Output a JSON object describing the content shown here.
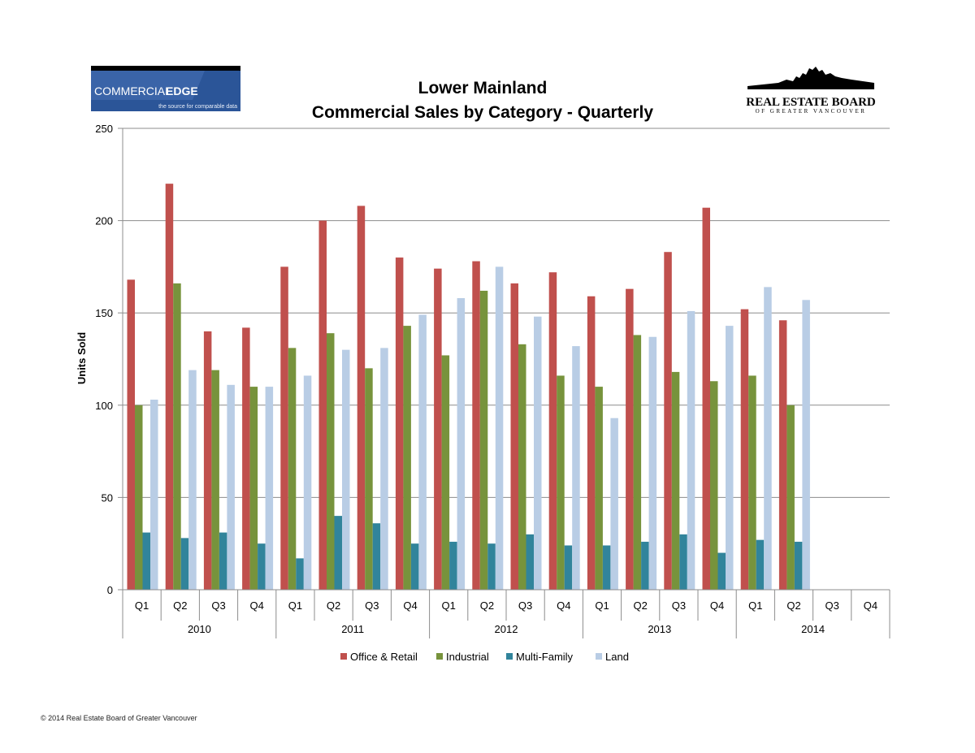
{
  "logos": {
    "left": {
      "brand": "COMMERCIAL",
      "brand_bold": "EDGE",
      "tagline": "the source for comparable data",
      "bg_color": "#2b5598"
    },
    "right": {
      "name": "REAL ESTATE BOARD",
      "sub": "OF GREATER VANCOUVER"
    }
  },
  "footer": {
    "text": "© 2014 Real Estate Board of Greater Vancouver"
  },
  "chart_data": {
    "type": "bar",
    "title": "Lower Mainland",
    "subtitle": "Commercial Sales by Category - Quarterly",
    "ylabel": "Units Sold",
    "xlabel": "",
    "ylim": [
      0,
      250
    ],
    "yticks": [
      0,
      50,
      100,
      150,
      200,
      250
    ],
    "grid": true,
    "legend_position": "bottom",
    "years": [
      "2010",
      "2011",
      "2012",
      "2013",
      "2014"
    ],
    "quarters": [
      "Q1",
      "Q2",
      "Q3",
      "Q4"
    ],
    "categories": [
      "2010 Q1",
      "2010 Q2",
      "2010 Q3",
      "2010 Q4",
      "2011 Q1",
      "2011 Q2",
      "2011 Q3",
      "2011 Q4",
      "2012 Q1",
      "2012 Q2",
      "2012 Q3",
      "2012 Q4",
      "2013 Q1",
      "2013 Q2",
      "2013 Q3",
      "2013 Q4",
      "2014 Q1",
      "2014 Q2",
      "2014 Q3",
      "2014 Q4"
    ],
    "series": [
      {
        "name": "Office & Retail",
        "color": "#c0504d",
        "values": [
          168,
          220,
          140,
          142,
          175,
          200,
          208,
          180,
          174,
          178,
          166,
          172,
          159,
          163,
          183,
          207,
          152,
          146,
          null,
          null
        ]
      },
      {
        "name": "Industrial",
        "color": "#77933c",
        "values": [
          100,
          166,
          119,
          110,
          131,
          139,
          120,
          143,
          127,
          162,
          133,
          116,
          110,
          138,
          118,
          113,
          116,
          100,
          null,
          null
        ]
      },
      {
        "name": "Multi-Family",
        "color": "#31849b",
        "values": [
          31,
          28,
          31,
          25,
          17,
          40,
          36,
          25,
          26,
          25,
          30,
          24,
          24,
          26,
          30,
          20,
          27,
          26,
          null,
          null
        ]
      },
      {
        "name": "Land",
        "color": "#b9cde5",
        "values": [
          103,
          119,
          111,
          110,
          116,
          130,
          131,
          149,
          158,
          175,
          148,
          132,
          93,
          137,
          151,
          143,
          164,
          157,
          null,
          null
        ]
      }
    ]
  }
}
